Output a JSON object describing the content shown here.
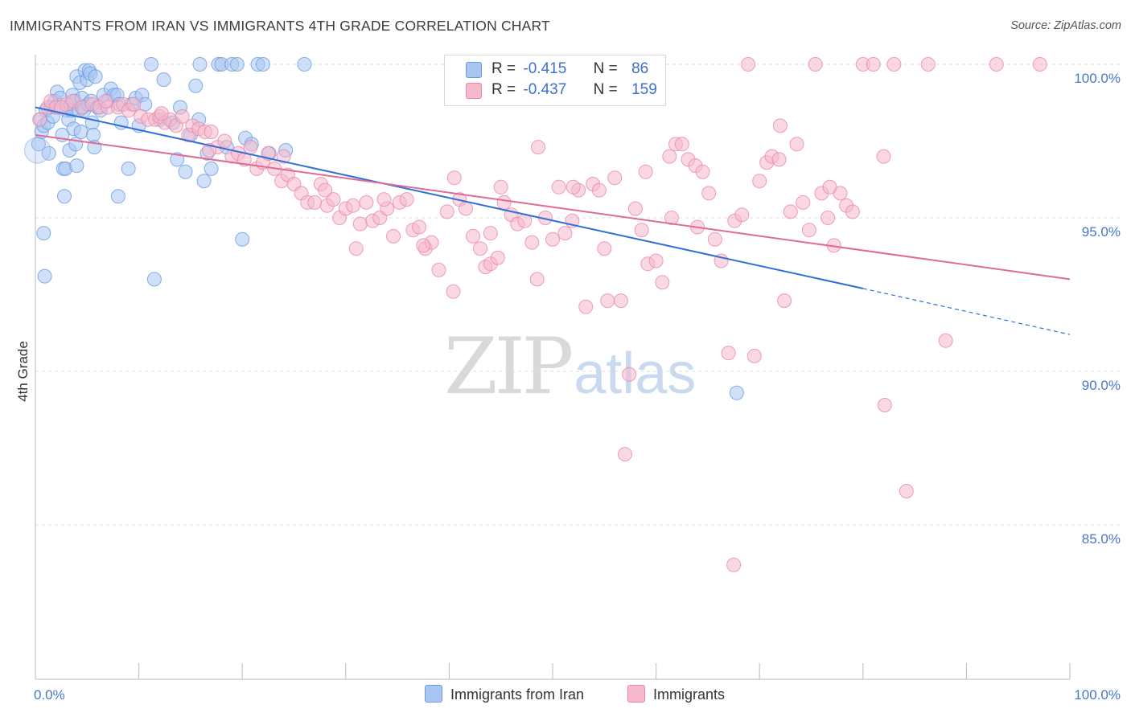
{
  "title": "IMMIGRANTS FROM IRAN VS IMMIGRANTS 4TH GRADE CORRELATION CHART",
  "source": "Source: ZipAtlas.com",
  "watermark": {
    "zip": "ZIP",
    "atlas": "atlas"
  },
  "legend": {
    "rows": [
      {
        "r_label": "R =",
        "r_value": "-0.415",
        "n_label": "N =",
        "n_value": "86",
        "color": "#a9c6f2"
      },
      {
        "r_label": "R =",
        "r_value": "-0.437",
        "n_label": "N =",
        "n_value": "159",
        "color": "#f6b8cc"
      }
    ]
  },
  "bottom_legend": [
    {
      "label": "Immigrants from Iran",
      "color": "#a9c6f2"
    },
    {
      "label": "Immigrants",
      "color": "#f6b8cc"
    }
  ],
  "chart_data": {
    "type": "scatter",
    "title": "IMMIGRANTS FROM IRAN VS IMMIGRANTS 4TH GRADE CORRELATION CHART",
    "xlabel": "",
    "ylabel": "4th Grade",
    "xlim": [
      0,
      100
    ],
    "ylim": [
      80.5,
      100.8
    ],
    "x_tick_labels": [
      "0.0%",
      "100.0%"
    ],
    "y_ticks": [
      100,
      95,
      90,
      85
    ],
    "y_tick_labels": [
      "100.0%",
      "95.0%",
      "90.0%",
      "85.0%"
    ],
    "grid": "horizontal dashed",
    "legend_position": "top-center",
    "series": [
      {
        "name": "Immigrants from Iran",
        "color": "#6a9be0",
        "fill": "#a9c6f2",
        "R": -0.415,
        "N": 86,
        "trend": {
          "x": [
            0,
            80
          ],
          "y": [
            98.6,
            92.7
          ],
          "dashed_to": [
            100,
            91.2
          ]
        },
        "points": [
          [
            0.3,
            97.4
          ],
          [
            0.5,
            98.2
          ],
          [
            0.6,
            97.8
          ],
          [
            0.8,
            98.0
          ],
          [
            1.0,
            98.5
          ],
          [
            1.2,
            98.1
          ],
          [
            1.3,
            97.1
          ],
          [
            1.5,
            98.6
          ],
          [
            1.7,
            98.3
          ],
          [
            1.9,
            98.8
          ],
          [
            2.1,
            99.1
          ],
          [
            2.2,
            98.6
          ],
          [
            2.4,
            98.9
          ],
          [
            2.6,
            97.7
          ],
          [
            2.7,
            96.6
          ],
          [
            2.9,
            96.6
          ],
          [
            3.0,
            98.5
          ],
          [
            3.2,
            98.2
          ],
          [
            3.3,
            97.2
          ],
          [
            3.4,
            98.7
          ],
          [
            3.5,
            98.5
          ],
          [
            3.6,
            99.0
          ],
          [
            3.7,
            97.9
          ],
          [
            3.8,
            98.8
          ],
          [
            3.9,
            97.4
          ],
          [
            4.0,
            99.6
          ],
          [
            4.2,
            98.5
          ],
          [
            4.3,
            99.4
          ],
          [
            4.4,
            97.8
          ],
          [
            4.5,
            98.9
          ],
          [
            4.6,
            98.6
          ],
          [
            4.7,
            98.5
          ],
          [
            4.8,
            99.8
          ],
          [
            5.0,
            99.5
          ],
          [
            5.1,
            98.7
          ],
          [
            5.2,
            99.8
          ],
          [
            5.3,
            99.7
          ],
          [
            5.4,
            98.8
          ],
          [
            5.5,
            98.1
          ],
          [
            5.6,
            97.7
          ],
          [
            5.7,
            97.3
          ],
          [
            5.8,
            99.6
          ],
          [
            6.0,
            98.6
          ],
          [
            6.3,
            98.5
          ],
          [
            6.6,
            99.0
          ],
          [
            7.0,
            98.8
          ],
          [
            7.3,
            99.2
          ],
          [
            7.6,
            99.0
          ],
          [
            7.9,
            99.0
          ],
          [
            8.1,
            98.7
          ],
          [
            8.3,
            98.1
          ],
          [
            9.0,
            96.6
          ],
          [
            9.3,
            98.7
          ],
          [
            9.7,
            98.9
          ],
          [
            10.0,
            98.0
          ],
          [
            10.3,
            99.0
          ],
          [
            10.6,
            98.7
          ],
          [
            11.2,
            100.0
          ],
          [
            12.0,
            98.2
          ],
          [
            12.4,
            99.5
          ],
          [
            13.3,
            98.1
          ],
          [
            13.7,
            96.9
          ],
          [
            14.0,
            98.6
          ],
          [
            14.5,
            96.5
          ],
          [
            15.0,
            97.7
          ],
          [
            15.5,
            99.3
          ],
          [
            15.8,
            98.2
          ],
          [
            15.9,
            100.0
          ],
          [
            16.3,
            96.2
          ],
          [
            16.6,
            97.1
          ],
          [
            17.0,
            96.6
          ],
          [
            17.7,
            100.0
          ],
          [
            18.0,
            100.0
          ],
          [
            18.5,
            97.3
          ],
          [
            19.0,
            100.0
          ],
          [
            19.5,
            100.0
          ],
          [
            20.3,
            97.6
          ],
          [
            20.9,
            97.4
          ],
          [
            21.5,
            100.0
          ],
          [
            22.0,
            100.0
          ],
          [
            22.6,
            97.1
          ],
          [
            24.2,
            97.2
          ],
          [
            26.0,
            100.0
          ],
          [
            4.0,
            96.7
          ],
          [
            0.8,
            94.5
          ],
          [
            0.9,
            93.1
          ],
          [
            2.8,
            95.7
          ],
          [
            8.0,
            95.7
          ],
          [
            11.5,
            93.0
          ],
          [
            20.0,
            94.3
          ],
          [
            67.8,
            89.3
          ]
        ]
      },
      {
        "name": "Immigrants",
        "color": "#e888a8",
        "fill": "#f6b8cc",
        "R": -0.437,
        "N": 159,
        "trend": {
          "x": [
            0,
            100
          ],
          "y": [
            97.7,
            93.0
          ]
        },
        "points": [
          [
            1.2,
            98.6
          ],
          [
            1.5,
            98.8
          ],
          [
            2.0,
            98.6
          ],
          [
            3.0,
            98.7
          ],
          [
            3.6,
            98.8
          ],
          [
            4.5,
            98.6
          ],
          [
            5.5,
            98.7
          ],
          [
            6.2,
            98.6
          ],
          [
            7.0,
            98.6
          ],
          [
            8.0,
            98.6
          ],
          [
            8.5,
            98.7
          ],
          [
            9.0,
            98.5
          ],
          [
            9.5,
            98.7
          ],
          [
            10.2,
            98.3
          ],
          [
            10.9,
            98.2
          ],
          [
            11.6,
            98.2
          ],
          [
            12.0,
            98.3
          ],
          [
            12.5,
            98.1
          ],
          [
            13.0,
            98.2
          ],
          [
            13.6,
            98.0
          ],
          [
            14.2,
            98.3
          ],
          [
            14.8,
            97.7
          ],
          [
            15.2,
            98.0
          ],
          [
            15.8,
            97.9
          ],
          [
            16.4,
            97.8
          ],
          [
            17.0,
            97.8
          ],
          [
            17.6,
            97.3
          ],
          [
            18.3,
            97.5
          ],
          [
            19.0,
            97.0
          ],
          [
            19.6,
            97.1
          ],
          [
            20.2,
            96.9
          ],
          [
            20.8,
            97.3
          ],
          [
            21.4,
            96.6
          ],
          [
            22.0,
            96.8
          ],
          [
            22.5,
            97.1
          ],
          [
            23.1,
            96.6
          ],
          [
            23.8,
            96.2
          ],
          [
            24.4,
            96.4
          ],
          [
            25.0,
            96.1
          ],
          [
            25.7,
            95.8
          ],
          [
            26.3,
            95.5
          ],
          [
            27.0,
            95.5
          ],
          [
            27.6,
            96.1
          ],
          [
            28.2,
            95.4
          ],
          [
            28.8,
            95.6
          ],
          [
            29.4,
            95.0
          ],
          [
            30.0,
            95.3
          ],
          [
            30.7,
            95.4
          ],
          [
            31.4,
            94.8
          ],
          [
            32.0,
            95.5
          ],
          [
            32.6,
            94.9
          ],
          [
            33.3,
            95.0
          ],
          [
            34.0,
            95.3
          ],
          [
            34.6,
            94.4
          ],
          [
            35.2,
            95.5
          ],
          [
            35.9,
            95.6
          ],
          [
            36.5,
            94.6
          ],
          [
            37.1,
            94.7
          ],
          [
            37.7,
            94.0
          ],
          [
            38.3,
            94.2
          ],
          [
            39.0,
            93.3
          ],
          [
            39.8,
            95.2
          ],
          [
            40.4,
            92.6
          ],
          [
            41.0,
            95.6
          ],
          [
            41.6,
            95.3
          ],
          [
            42.3,
            94.4
          ],
          [
            43.0,
            94.0
          ],
          [
            43.5,
            93.4
          ],
          [
            44.0,
            93.5
          ],
          [
            44.7,
            93.7
          ],
          [
            45.3,
            95.5
          ],
          [
            46.0,
            95.1
          ],
          [
            46.6,
            94.8
          ],
          [
            47.3,
            94.9
          ],
          [
            48.0,
            94.2
          ],
          [
            48.6,
            97.3
          ],
          [
            49.3,
            95.0
          ],
          [
            50.0,
            94.3
          ],
          [
            50.6,
            96.0
          ],
          [
            51.2,
            94.5
          ],
          [
            51.9,
            94.9
          ],
          [
            52.5,
            95.9
          ],
          [
            53.2,
            92.1
          ],
          [
            53.9,
            96.1
          ],
          [
            54.5,
            95.9
          ],
          [
            55.3,
            92.3
          ],
          [
            56.0,
            96.3
          ],
          [
            56.6,
            92.3
          ],
          [
            57.4,
            89.9
          ],
          [
            58.0,
            95.3
          ],
          [
            58.6,
            94.6
          ],
          [
            59.2,
            93.5
          ],
          [
            60.0,
            93.6
          ],
          [
            60.6,
            92.9
          ],
          [
            61.3,
            97.0
          ],
          [
            61.9,
            97.4
          ],
          [
            62.5,
            97.4
          ],
          [
            63.1,
            96.9
          ],
          [
            63.8,
            96.7
          ],
          [
            64.5,
            96.5
          ],
          [
            65.1,
            95.8
          ],
          [
            65.7,
            94.3
          ],
          [
            66.3,
            93.6
          ],
          [
            67.0,
            90.6
          ],
          [
            67.6,
            94.9
          ],
          [
            68.3,
            95.1
          ],
          [
            68.9,
            100.0
          ],
          [
            70.0,
            96.2
          ],
          [
            70.7,
            96.8
          ],
          [
            71.2,
            97.0
          ],
          [
            71.9,
            96.9
          ],
          [
            72.4,
            92.3
          ],
          [
            73.0,
            95.2
          ],
          [
            73.6,
            97.4
          ],
          [
            74.2,
            95.5
          ],
          [
            74.8,
            94.6
          ],
          [
            75.4,
            100.0
          ],
          [
            76.0,
            95.8
          ],
          [
            76.6,
            95.0
          ],
          [
            77.2,
            94.1
          ],
          [
            77.8,
            95.8
          ],
          [
            78.4,
            95.4
          ],
          [
            79.0,
            95.2
          ],
          [
            80.0,
            100.0
          ],
          [
            81.0,
            100.0
          ],
          [
            82.1,
            88.9
          ],
          [
            83.0,
            100.0
          ],
          [
            84.2,
            86.1
          ],
          [
            86.3,
            100.0
          ],
          [
            92.9,
            100.0
          ],
          [
            97.1,
            100.0
          ],
          [
            0.4,
            98.2
          ],
          [
            2.5,
            98.6
          ],
          [
            6.8,
            98.8
          ],
          [
            12.2,
            98.4
          ],
          [
            16.8,
            97.2
          ],
          [
            24.0,
            97.0
          ],
          [
            28.0,
            95.9
          ],
          [
            33.7,
            95.6
          ],
          [
            37.5,
            94.1
          ],
          [
            40.5,
            96.3
          ],
          [
            45.0,
            96.0
          ],
          [
            52.0,
            96.0
          ],
          [
            59.0,
            96.5
          ],
          [
            64.0,
            94.7
          ],
          [
            69.5,
            90.5
          ],
          [
            72.0,
            98.0
          ],
          [
            76.8,
            96.0
          ],
          [
            82.0,
            97.0
          ],
          [
            88.0,
            91.0
          ],
          [
            57.0,
            87.3
          ],
          [
            67.5,
            83.7
          ],
          [
            44.0,
            94.5
          ],
          [
            31.0,
            94.0
          ],
          [
            48.5,
            93.0
          ],
          [
            61.5,
            95.0
          ],
          [
            55.0,
            94.0
          ]
        ]
      }
    ]
  }
}
